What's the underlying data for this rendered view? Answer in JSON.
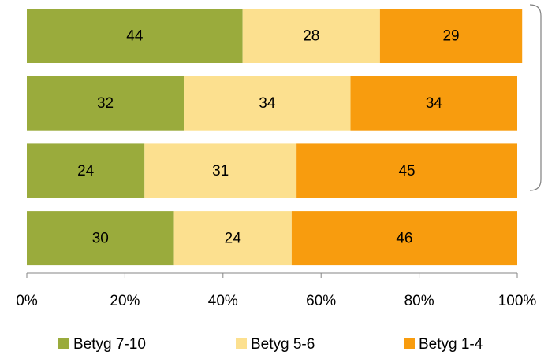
{
  "chart_data": {
    "type": "stacked_barh",
    "categories": [
      null,
      null,
      null,
      null
    ],
    "series": [
      {
        "name": "Betyg 7-10",
        "color": "#9aab3c",
        "values": [
          44,
          32,
          24,
          30
        ]
      },
      {
        "name": "Betyg 5-6",
        "color": "#fce08f",
        "values": [
          28,
          34,
          31,
          24
        ]
      },
      {
        "name": "Betyg 1-4",
        "color": "#f89c0e",
        "values": [
          29,
          34,
          45,
          46
        ]
      }
    ],
    "xlim": [
      0,
      100
    ],
    "xticks": [
      {
        "value": 0,
        "label": "0%"
      },
      {
        "value": 20,
        "label": "20%"
      },
      {
        "value": 40,
        "label": "40%"
      },
      {
        "value": 60,
        "label": "60%"
      },
      {
        "value": 80,
        "label": "80%"
      },
      {
        "value": 100,
        "label": "100%"
      }
    ],
    "legend": "bottom"
  }
}
